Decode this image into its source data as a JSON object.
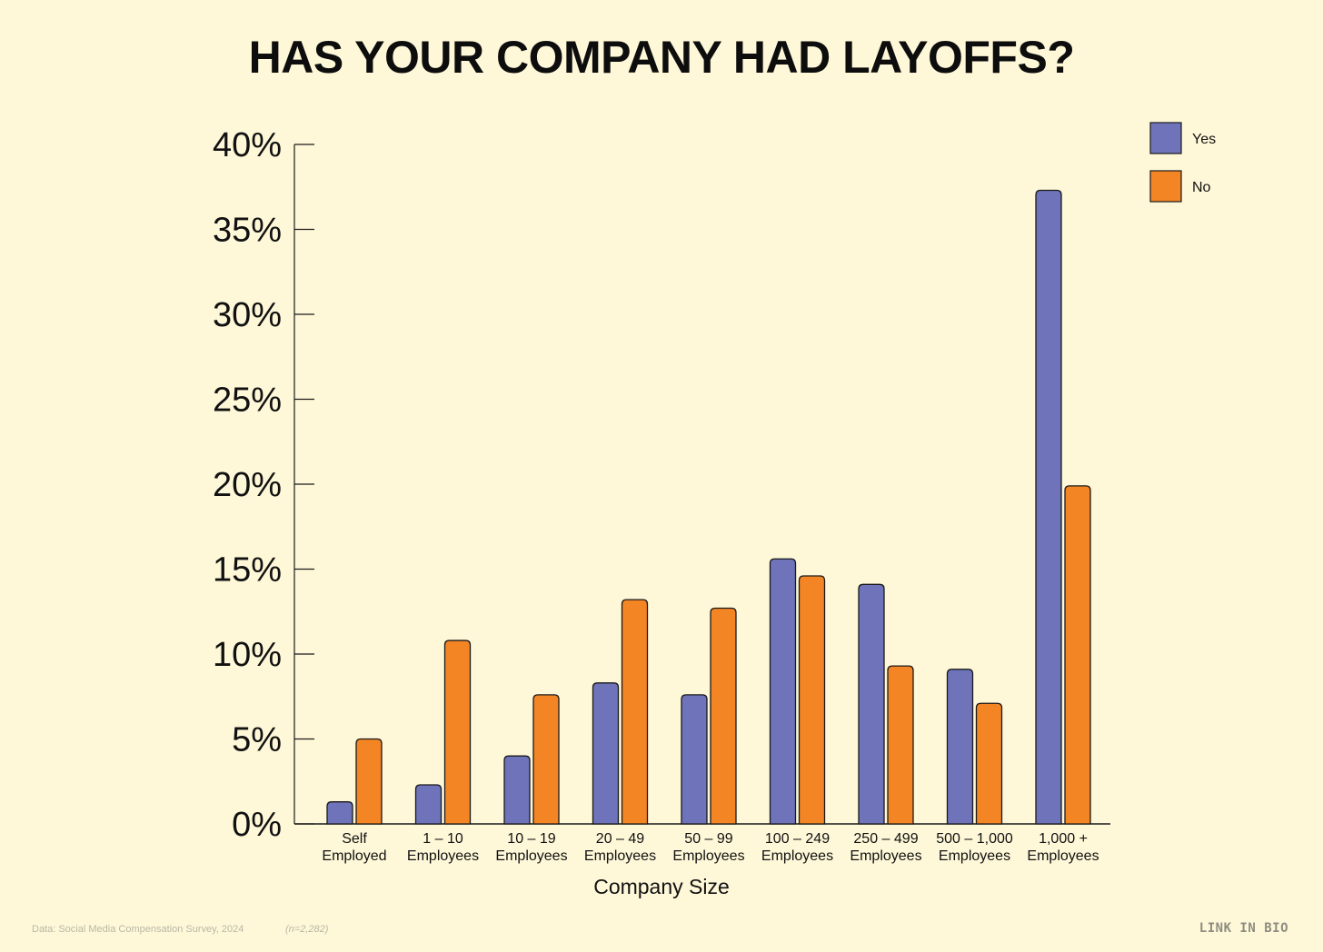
{
  "title": "HAS YOUR COMPANY HAD LAYOFFS?",
  "footer": {
    "source": "Data: Social Media Compensation Survey, 2024",
    "sample_size": "(n=2,282)",
    "brand": "LINK IN BIO"
  },
  "colors": {
    "background": "#FEF8D8",
    "yes": "#6E73BA",
    "no": "#F38524",
    "stroke": "#1a1a1a"
  },
  "chart_data": {
    "type": "bar",
    "title": "HAS YOUR COMPANY HAD LAYOFFS?",
    "xlabel": "Company Size",
    "ylabel": "",
    "ylim": [
      0,
      40
    ],
    "yticks": [
      "0%",
      "5%",
      "10%",
      "15%",
      "20%",
      "25%",
      "30%",
      "35%",
      "40%"
    ],
    "categories": [
      [
        "Self",
        "Employed"
      ],
      [
        "1 – 10",
        "Employees"
      ],
      [
        "10 – 19",
        "Employees"
      ],
      [
        "20 – 49",
        "Employees"
      ],
      [
        "50 – 99",
        "Employees"
      ],
      [
        "100 – 249",
        "Employees"
      ],
      [
        "250 – 499",
        "Employees"
      ],
      [
        "500 – 1,000",
        "Employees"
      ],
      [
        "1,000 +",
        "Employees"
      ]
    ],
    "series": [
      {
        "name": "Yes",
        "color": "#6E73BA",
        "values": [
          1.3,
          2.3,
          4.0,
          8.3,
          7.6,
          15.6,
          14.1,
          9.1,
          37.3
        ]
      },
      {
        "name": "No",
        "color": "#F38524",
        "values": [
          5.0,
          10.8,
          7.6,
          13.2,
          12.7,
          14.6,
          9.3,
          7.1,
          19.9
        ]
      }
    ],
    "legend": "top-right",
    "grid": false
  }
}
